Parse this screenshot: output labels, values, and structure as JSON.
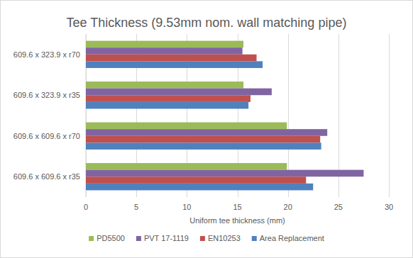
{
  "chart_data": {
    "type": "bar",
    "orientation": "horizontal",
    "title": "Tee Thickness (9.53mm nom. wall matching pipe)",
    "x_label": "Uniform tee thickness (mm)",
    "categories": [
      "609.6 x 323.9 x r70",
      "609.6 x 323.9 x r35",
      "609.6 x 609.6 x r70",
      "609.6 x 609.6 x r35"
    ],
    "series": [
      {
        "name": "PD5500",
        "color": "#9bbb59",
        "values": [
          15.6,
          15.6,
          19.9,
          19.9
        ]
      },
      {
        "name": "PVT 17-1119",
        "color": "#8064a2",
        "values": [
          15.5,
          18.4,
          23.9,
          27.5
        ]
      },
      {
        "name": "EN10253",
        "color": "#c0504d",
        "values": [
          16.9,
          16.3,
          23.2,
          21.8
        ]
      },
      {
        "name": "Area Replacement",
        "color": "#4f81bd",
        "values": [
          17.5,
          16.1,
          23.3,
          22.5
        ]
      }
    ],
    "xlim": [
      0,
      30
    ],
    "xticks": [
      0,
      5,
      10,
      15,
      20,
      25,
      30
    ],
    "grid": true,
    "legend": "bottom"
  }
}
